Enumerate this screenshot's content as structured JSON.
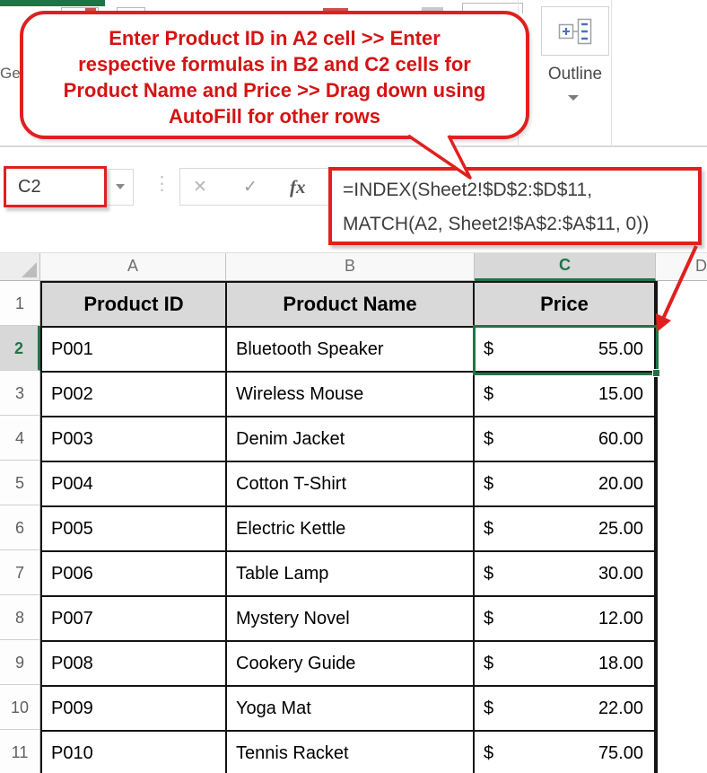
{
  "ribbon": {
    "partial_label_left": "Ge",
    "outline": {
      "label": "Outline"
    }
  },
  "callout": {
    "line1": "Enter Product ID in A2 cell >> Enter",
    "line2": "respective formulas in B2 and C2 cells for",
    "line3": "Product Name and Price >> Drag down using",
    "line4": "AutoFill for other rows"
  },
  "formula_bar": {
    "name_box_value": "C2",
    "cancel_icon": "✕",
    "enter_icon": "✓",
    "fx_icon": "fx",
    "more_icon": "⋮",
    "formula_line1": "=INDEX(Sheet2!$D$2:$D$11,",
    "formula_line2": "MATCH(A2, Sheet2!$A$2:$A$11, 0))"
  },
  "spreadsheet": {
    "column_letters": [
      "A",
      "B",
      "C",
      "D"
    ],
    "selected_cell": "C2",
    "selected_column": "C",
    "selected_row": 2,
    "header_row": {
      "n": 1,
      "cells": [
        "Product ID",
        "Product Name",
        "Price"
      ]
    },
    "data_rows": [
      {
        "n": 2,
        "product_id": "P001",
        "product_name": "Bluetooth Speaker",
        "currency": "$",
        "price": "55.00"
      },
      {
        "n": 3,
        "product_id": "P002",
        "product_name": "Wireless Mouse",
        "currency": "$",
        "price": "15.00"
      },
      {
        "n": 4,
        "product_id": "P003",
        "product_name": "Denim Jacket",
        "currency": "$",
        "price": "60.00"
      },
      {
        "n": 5,
        "product_id": "P004",
        "product_name": "Cotton T-Shirt",
        "currency": "$",
        "price": "20.00"
      },
      {
        "n": 6,
        "product_id": "P005",
        "product_name": "Electric Kettle",
        "currency": "$",
        "price": "25.00"
      },
      {
        "n": 7,
        "product_id": "P006",
        "product_name": "Table Lamp",
        "currency": "$",
        "price": "30.00"
      },
      {
        "n": 8,
        "product_id": "P007",
        "product_name": "Mystery Novel",
        "currency": "$",
        "price": "12.00"
      },
      {
        "n": 9,
        "product_id": "P008",
        "product_name": "Cookery Guide",
        "currency": "$",
        "price": "18.00"
      },
      {
        "n": 10,
        "product_id": "P009",
        "product_name": "Yoga Mat",
        "currency": "$",
        "price": "22.00"
      },
      {
        "n": 11,
        "product_id": "P010",
        "product_name": "Tennis Racket",
        "currency": "$",
        "price": "75.00"
      }
    ]
  },
  "colors": {
    "excel_green": "#217346",
    "annotation_red": "#e0201f",
    "callout_text_red": "#d41414",
    "header_fill": "#d9d9d9",
    "selected_header_fill": "#d8d8d8",
    "grid_border": "#141414"
  }
}
